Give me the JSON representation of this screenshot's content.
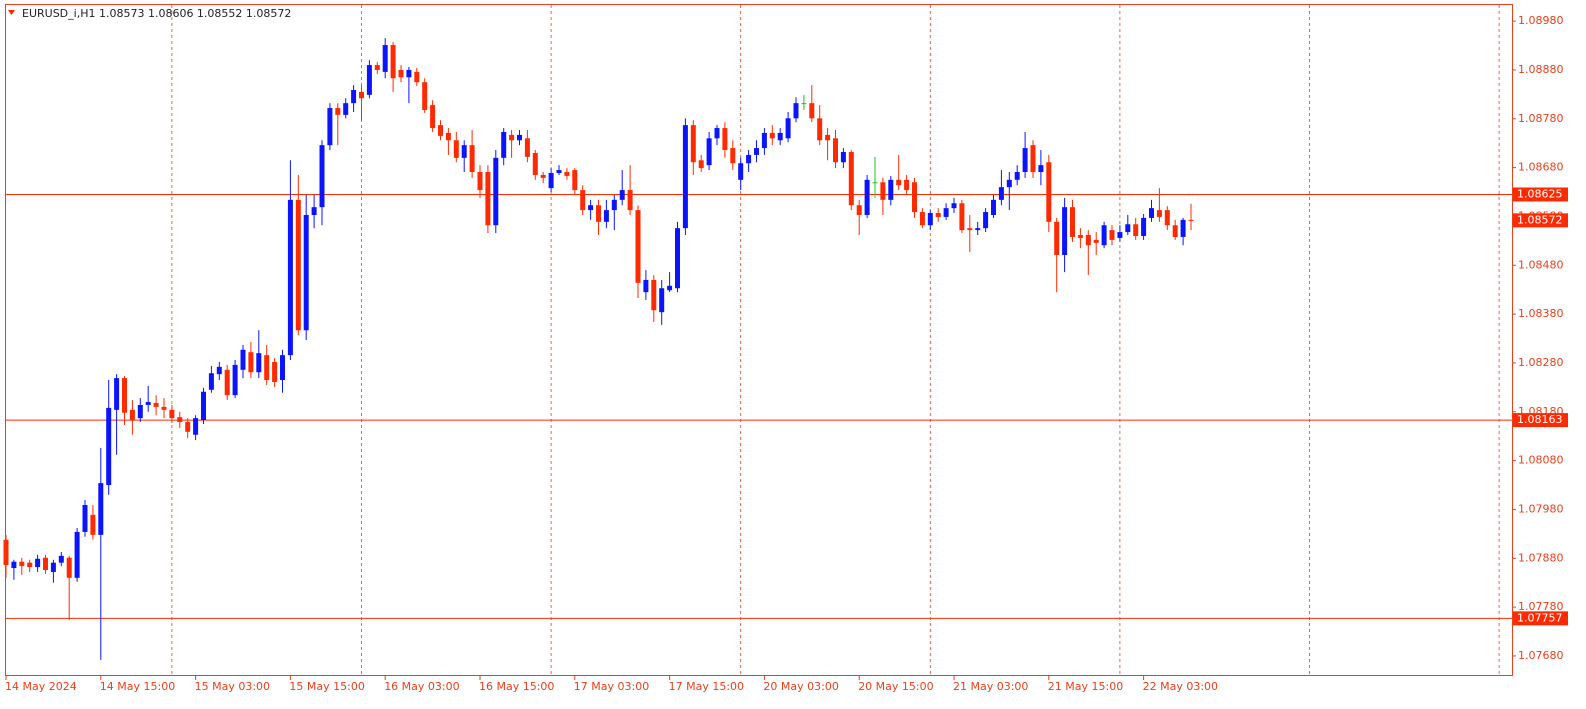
{
  "chart_data": {
    "type": "candlestick",
    "title": "EURUSD_i,H1  1.08573 1.08606 1.08552 1.08572",
    "up_color": "#0a14ff",
    "down_color": "#ff2a00",
    "doji_color": "#22c422",
    "line_color": "#ff2a00",
    "categories": [
      "14 May 2024",
      null,
      null,
      null,
      null,
      null,
      null,
      null,
      null,
      null,
      null,
      null,
      "14 May 15:00",
      null,
      null,
      null,
      null,
      null,
      null,
      null,
      null,
      null,
      null,
      null,
      "15 May 03:00",
      null,
      null,
      null,
      null,
      null,
      null,
      null,
      null,
      null,
      null,
      null,
      "15 May 15:00",
      null,
      null,
      null,
      null,
      null,
      null,
      null,
      null,
      null,
      null,
      null,
      "16 May 03:00",
      null,
      null,
      null,
      null,
      null,
      null,
      null,
      null,
      null,
      null,
      null,
      "16 May 15:00",
      null,
      null,
      null,
      null,
      null,
      null,
      null,
      null,
      null,
      null,
      null,
      "17 May 03:00",
      null,
      null,
      null,
      null,
      null,
      null,
      null,
      null,
      null,
      null,
      null,
      "17 May 15:00",
      null,
      null,
      null,
      null,
      null,
      null,
      null,
      null,
      null,
      null,
      null,
      "20 May 03:00",
      null,
      null,
      null,
      null,
      null,
      null,
      null,
      null,
      null,
      null,
      null,
      "20 May 15:00",
      null,
      null,
      null,
      null,
      null,
      null,
      null,
      null,
      null,
      null,
      null,
      "21 May 03:00",
      null,
      null,
      null,
      null,
      null,
      null,
      null,
      null,
      null,
      null,
      null,
      "21 May 15:00",
      null,
      null,
      null,
      null,
      null,
      null,
      null,
      null,
      null,
      null,
      null,
      "22 May 03:00",
      null,
      null,
      null,
      null,
      null,
      null
    ],
    "open": [
      1.07918,
      1.0786,
      1.07873,
      1.07871,
      1.07862,
      1.07881,
      1.07852,
      1.07871,
      1.07881,
      1.0784,
      1.07934,
      1.07969,
      1.07928,
      1.0803,
      1.08184,
      1.08249,
      1.08184,
      1.08167,
      1.08194,
      1.08198,
      1.0819,
      1.08184,
      1.08169,
      1.08159,
      1.08133,
      1.08163,
      1.08225,
      1.08257,
      1.08266,
      1.08214,
      1.08266,
      1.08302,
      1.08261,
      1.08296,
      1.08282,
      1.08245,
      1.08296,
      1.08614,
      1.08347,
      1.08583,
      1.08599,
      1.08726,
      1.08802,
      1.08788,
      1.08812,
      1.08835,
      1.08829,
      1.0889,
      1.08876,
      1.08931,
      1.0888,
      1.08865,
      1.08876,
      1.08855,
      1.08808,
      1.08767,
      1.08751,
      1.08736,
      1.087,
      1.08726,
      1.08671,
      1.08671,
      1.08562,
      1.087,
      1.08747,
      1.08736,
      1.0874,
      1.0871,
      1.08665,
      1.08638,
      1.08669,
      1.08671,
      1.08675,
      1.08634,
      1.08593,
      1.08603,
      1.08569,
      1.08593,
      1.08614,
      1.08634,
      1.08593,
      1.08425,
      1.0845,
      1.08384,
      1.08429,
      1.08433,
      1.08556,
      1.08767,
      1.08695,
      1.08685,
      1.0874,
      1.08761,
      1.0872,
      1.08655,
      1.08689,
      1.08706,
      1.0872,
      1.08751,
      1.08736,
      1.0874,
      1.08781,
      1.08812,
      1.08812,
      1.08781,
      1.08747,
      1.0874,
      1.08691,
      1.08712,
      1.08603,
      1.08583,
      1.0865,
      1.0865,
      1.08614,
      1.08655,
      1.08655,
      1.0865,
      1.08589,
      1.08562,
      1.08587,
      1.08579,
      1.08597,
      1.08607,
      1.08556,
      1.08552,
      1.08556,
      1.08583,
      1.08614,
      1.0864,
      1.08655,
      1.08671,
      1.08726,
      1.08671,
      1.08691,
      1.08569,
      1.08501,
      1.08599,
      1.08542,
      1.08542,
      1.08532,
      1.08521,
      1.08552,
      1.08536,
      1.08548,
      1.08564,
      1.0854,
      1.08577,
      1.08593,
      1.08593,
      1.08562,
      1.08538,
      1.08573
    ],
    "high": [
      1.07928,
      1.07877,
      1.07881,
      1.07877,
      1.07887,
      1.07887,
      1.07877,
      1.07893,
      1.07885,
      1.07942,
      1.07999,
      1.07989,
      1.08106,
      1.08245,
      1.08257,
      1.08253,
      1.08204,
      1.08208,
      1.08233,
      1.08214,
      1.08208,
      1.08194,
      1.0818,
      1.08167,
      1.08173,
      1.08229,
      1.08274,
      1.08282,
      1.08276,
      1.08286,
      1.08317,
      1.08323,
      1.08347,
      1.08317,
      1.0829,
      1.08307,
      1.08695,
      1.08665,
      1.08624,
      1.08624,
      1.08736,
      1.08812,
      1.08812,
      1.08822,
      1.08849,
      1.08849,
      1.089,
      1.08896,
      1.08945,
      1.08937,
      1.0889,
      1.08886,
      1.08884,
      1.08863,
      1.08818,
      1.08777,
      1.08761,
      1.08753,
      1.08736,
      1.08757,
      1.08685,
      1.08685,
      1.08716,
      1.08761,
      1.08757,
      1.08757,
      1.08757,
      1.08716,
      1.08671,
      1.08679,
      1.08685,
      1.08679,
      1.08679,
      1.08644,
      1.08614,
      1.08614,
      1.08614,
      1.08624,
      1.08675,
      1.08685,
      1.08603,
      1.0847,
      1.0846,
      1.0845,
      1.08466,
      1.08569,
      1.08781,
      1.08777,
      1.08706,
      1.08753,
      1.08767,
      1.08773,
      1.08736,
      1.087,
      1.08716,
      1.08736,
      1.08761,
      1.08767,
      1.08761,
      1.08794,
      1.08824,
      1.08829,
      1.08849,
      1.08808,
      1.08761,
      1.08757,
      1.0872,
      1.08716,
      1.08614,
      1.08665,
      1.08702,
      1.08659,
      1.08663,
      1.08706,
      1.08665,
      1.08659,
      1.08597,
      1.08593,
      1.08597,
      1.08607,
      1.08618,
      1.08614,
      1.08583,
      1.08569,
      1.08597,
      1.08624,
      1.08675,
      1.08671,
      1.08685,
      1.08753,
      1.08736,
      1.08716,
      1.08706,
      1.08577,
      1.08618,
      1.08614,
      1.08556,
      1.08552,
      1.08548,
      1.08569,
      1.08562,
      1.08562,
      1.08583,
      1.08577,
      1.08585,
      1.08614,
      1.08638,
      1.08601,
      1.08573,
      1.08577,
      1.08606
    ],
    "low": [
      1.0784,
      1.07836,
      1.07846,
      1.07852,
      1.07852,
      1.07848,
      1.0783,
      1.07864,
      1.07754,
      1.07832,
      1.07924,
      1.07918,
      1.07672,
      1.0801,
      1.08092,
      1.08153,
      1.08133,
      1.08159,
      1.0818,
      1.08173,
      1.08167,
      1.08157,
      1.08147,
      1.08126,
      1.08122,
      1.08155,
      1.08219,
      1.08245,
      1.08204,
      1.08208,
      1.08249,
      1.08249,
      1.08249,
      1.08235,
      1.08231,
      1.08219,
      1.08286,
      1.08337,
      1.08327,
      1.08556,
      1.08562,
      1.08716,
      1.08726,
      1.08781,
      1.08794,
      1.08777,
      1.08822,
      1.08872,
      1.08863,
      1.08835,
      1.08855,
      1.08812,
      1.08847,
      1.08792,
      1.08753,
      1.08736,
      1.08706,
      1.08691,
      1.08671,
      1.08659,
      1.08618,
      1.08546,
      1.08546,
      1.08685,
      1.087,
      1.08726,
      1.08691,
      1.08655,
      1.08648,
      1.0863,
      1.08665,
      1.08655,
      1.08624,
      1.08583,
      1.08573,
      1.08542,
      1.08556,
      1.08552,
      1.08603,
      1.08583,
      1.08413,
      1.08409,
      1.08364,
      1.08358,
      1.08425,
      1.08425,
      1.08542,
      1.08665,
      1.08671,
      1.08675,
      1.08726,
      1.087,
      1.08675,
      1.08634,
      1.08671,
      1.08691,
      1.08706,
      1.08726,
      1.08726,
      1.08732,
      1.08773,
      1.08798,
      1.08773,
      1.08726,
      1.08695,
      1.08679,
      1.08679,
      1.08593,
      1.08542,
      1.08577,
      1.08618,
      1.08583,
      1.08603,
      1.08634,
      1.08624,
      1.08577,
      1.08556,
      1.08552,
      1.08569,
      1.08573,
      1.08587,
      1.08546,
      1.08507,
      1.08542,
      1.08548,
      1.08577,
      1.08603,
      1.08593,
      1.08644,
      1.08659,
      1.08659,
      1.08644,
      1.08548,
      1.08425,
      1.08466,
      1.08528,
      1.08515,
      1.0846,
      1.08501,
      1.08515,
      1.08521,
      1.08528,
      1.08542,
      1.08532,
      1.08532,
      1.08569,
      1.08569,
      1.08552,
      1.08532,
      1.08521,
      1.08552
    ],
    "close": [
      1.07866,
      1.07873,
      1.07864,
      1.07862,
      1.07879,
      1.07856,
      1.07871,
      1.07885,
      1.0784,
      1.07934,
      1.07989,
      1.07928,
      1.08034,
      1.08188,
      1.08249,
      1.08178,
      1.08163,
      1.08194,
      1.082,
      1.0819,
      1.08184,
      1.08167,
      1.08159,
      1.08139,
      1.08167,
      1.08221,
      1.08259,
      1.08272,
      1.08214,
      1.08276,
      1.08307,
      1.08261,
      1.083,
      1.08245,
      1.08241,
      1.08296,
      1.08614,
      1.08347,
      1.08583,
      1.08599,
      1.08726,
      1.08802,
      1.08788,
      1.08812,
      1.08839,
      1.08822,
      1.0889,
      1.0888,
      1.08931,
      1.08863,
      1.08865,
      1.0888,
      1.08855,
      1.08798,
      1.08761,
      1.08745,
      1.08736,
      1.087,
      1.08726,
      1.08671,
      1.08634,
      1.08562,
      1.087,
      1.08753,
      1.08736,
      1.08747,
      1.08702,
      1.08665,
      1.08659,
      1.08669,
      1.08675,
      1.08663,
      1.08634,
      1.08593,
      1.08603,
      1.08569,
      1.08593,
      1.08614,
      1.08634,
      1.08593,
      1.08444,
      1.0845,
      1.08388,
      1.08433,
      1.08438,
      1.08556,
      1.08767,
      1.08691,
      1.08679,
      1.0874,
      1.08761,
      1.08716,
      1.08689,
      1.08689,
      1.08706,
      1.0872,
      1.08751,
      1.0874,
      1.08751,
      1.08781,
      1.08812,
      1.08812,
      1.08781,
      1.08736,
      1.08736,
      1.08691,
      1.08712,
      1.08603,
      1.08583,
      1.08655,
      1.0865,
      1.08614,
      1.08655,
      1.08644,
      1.08634,
      1.08589,
      1.08562,
      1.08587,
      1.08579,
      1.08597,
      1.08607,
      1.08552,
      1.08552,
      1.08556,
      1.08589,
      1.08614,
      1.0864,
      1.08655,
      1.08671,
      1.0872,
      1.08671,
      1.08685,
      1.08569,
      1.08501,
      1.08599,
      1.08538,
      1.08536,
      1.08521,
      1.08526,
      1.08562,
      1.08532,
      1.08548,
      1.08564,
      1.0854,
      1.08577,
      1.08597,
      1.08579,
      1.08562,
      1.08538,
      1.08573,
      1.08572
    ],
    "ylim": [
      1.07641,
      1.09013
    ],
    "yticks": [
      {
        "value": 1.0898,
        "label": "1.08980"
      },
      {
        "value": 1.0888,
        "label": "1.08880"
      },
      {
        "value": 1.0878,
        "label": "1.08780"
      },
      {
        "value": 1.0868,
        "label": "1.08680"
      },
      {
        "value": 1.0858,
        "label": "1.08580"
      },
      {
        "value": 1.0848,
        "label": "1.08480"
      },
      {
        "value": 1.0838,
        "label": "1.08380"
      },
      {
        "value": 1.0828,
        "label": "1.08280"
      },
      {
        "value": 1.0818,
        "label": "1.08180"
      },
      {
        "value": 1.0808,
        "label": "1.08080"
      },
      {
        "value": 1.0798,
        "label": "1.07980"
      },
      {
        "value": 1.0788,
        "label": "1.07880"
      },
      {
        "value": 1.0778,
        "label": "1.07780"
      },
      {
        "value": 1.0768,
        "label": "1.07680"
      }
    ],
    "hlines": [
      1.08625,
      1.08163,
      1.07757
    ]
  }
}
